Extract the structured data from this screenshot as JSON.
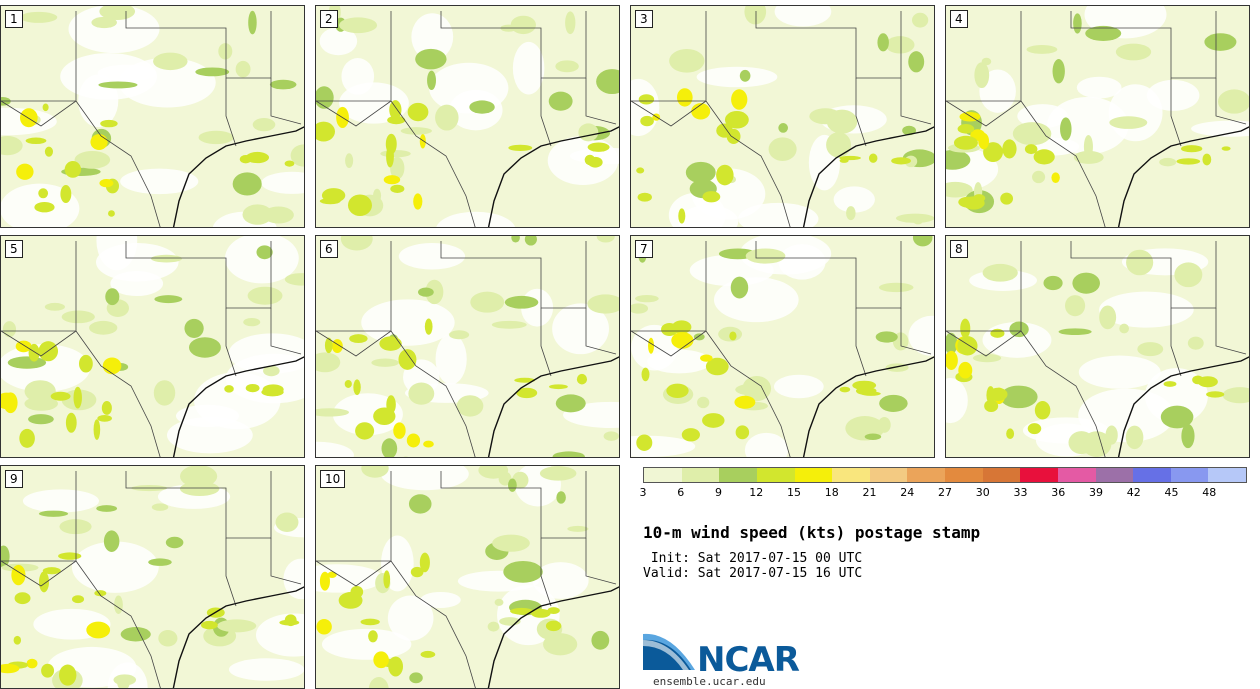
{
  "panels": [
    "1",
    "2",
    "3",
    "4",
    "5",
    "6",
    "7",
    "8",
    "9",
    "10"
  ],
  "colorbar": {
    "colors": [
      "#f0f6d4",
      "#dfeeaa",
      "#a8cf5e",
      "#d2e62e",
      "#f5ef0a",
      "#f9e67d",
      "#f3ca82",
      "#eba45a",
      "#e38a3e",
      "#d77636",
      "#e8103c",
      "#e45aa4",
      "#9c70a8",
      "#6670e6",
      "#8898f0",
      "#b6c8f8"
    ],
    "ticks": [
      "3",
      "6",
      "9",
      "12",
      "15",
      "18",
      "21",
      "24",
      "27",
      "30",
      "33",
      "36",
      "39",
      "42",
      "45",
      "48"
    ]
  },
  "title": "10-m wind speed (kts) postage stamp",
  "init": " Init: Sat 2017-07-15 00 UTC",
  "valid": "Valid: Sat 2017-07-15 16 UTC",
  "logo_text": "NCAR",
  "site": "ensemble.ucar.edu"
}
